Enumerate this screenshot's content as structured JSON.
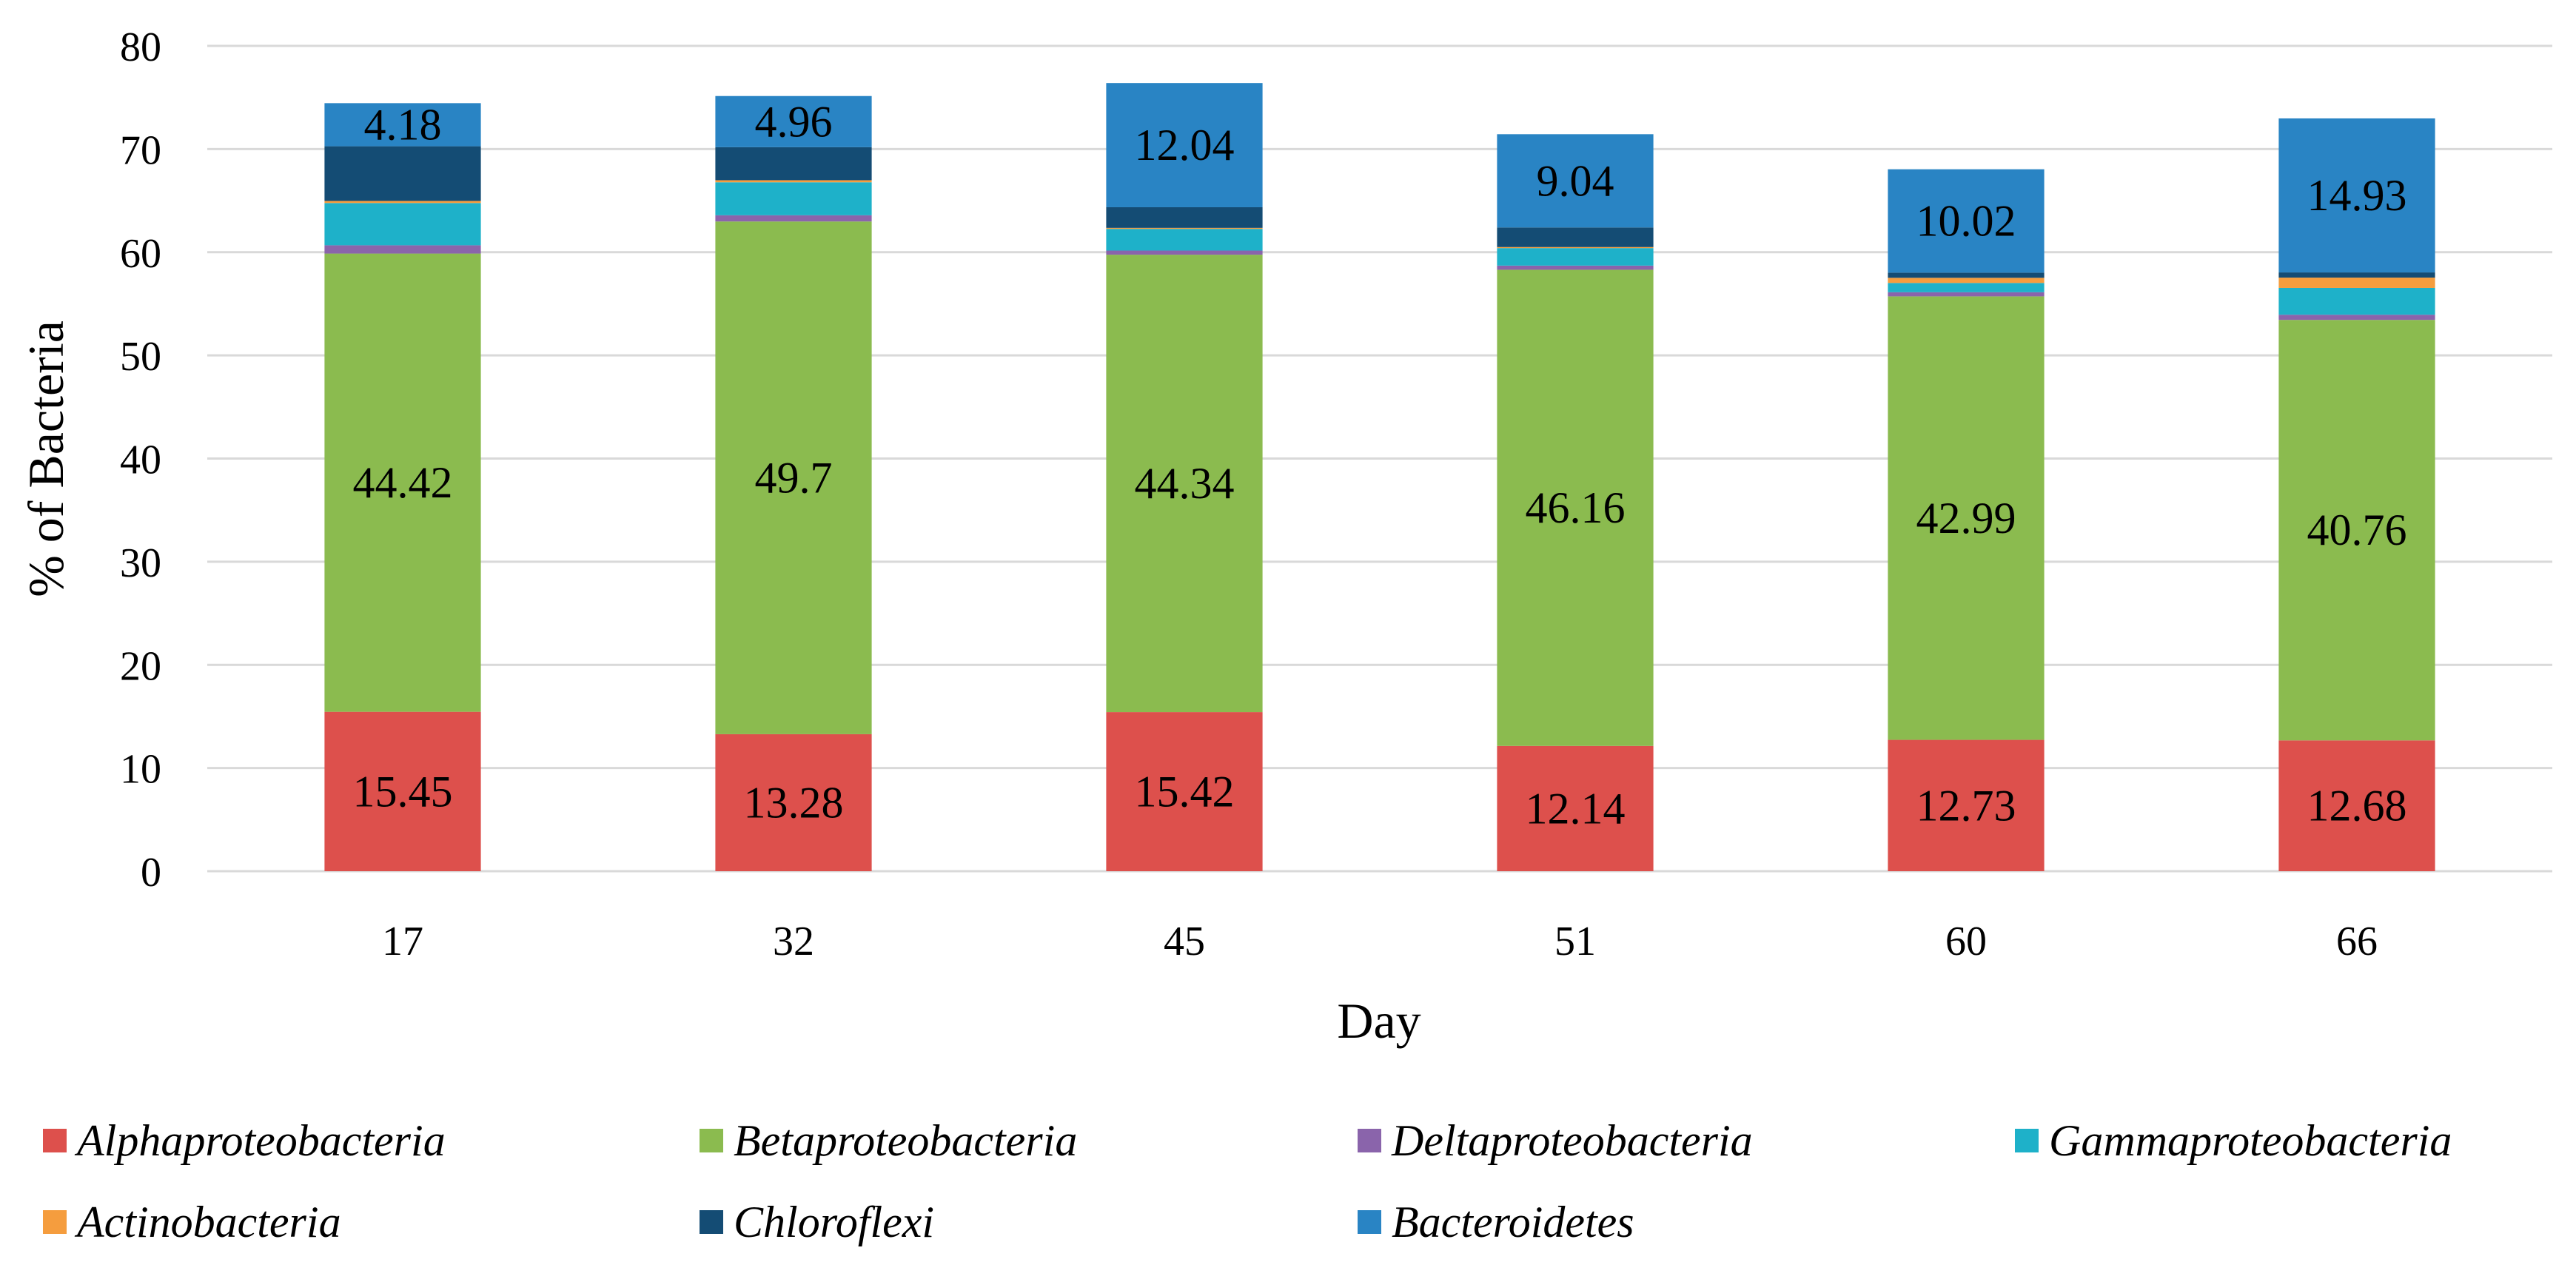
{
  "chart_data": {
    "type": "bar",
    "stacked": true,
    "title": "",
    "xlabel": "Day",
    "ylabel": "% of Bacteria",
    "ylim": [
      0,
      80
    ],
    "yticks": [
      0,
      10,
      20,
      30,
      40,
      50,
      60,
      70,
      80
    ],
    "grid": true,
    "legend_position": "bottom",
    "categories": [
      "17",
      "32",
      "45",
      "51",
      "60",
      "66"
    ],
    "series": [
      {
        "name": "Alphaproteobacteria",
        "color": "#dd504c",
        "values": [
          15.45,
          13.28,
          15.42,
          12.14,
          12.73,
          12.68
        ],
        "labels": [
          "15.45",
          "13.28",
          "15.42",
          "12.14",
          "12.73",
          "12.68"
        ]
      },
      {
        "name": "Betaproteobacteria",
        "color": "#8bbb4f",
        "values": [
          44.42,
          49.7,
          44.34,
          46.16,
          42.99,
          40.76
        ],
        "labels": [
          "44.42",
          "49.7",
          "44.34",
          "46.16",
          "42.99",
          "40.76"
        ]
      },
      {
        "name": "Deltaproteobacteria",
        "color": "#8a64ab",
        "values": [
          0.8,
          0.6,
          0.4,
          0.4,
          0.4,
          0.5
        ],
        "labels": [
          "",
          "",
          "",
          "",
          "",
          ""
        ]
      },
      {
        "name": "Gammaproteobacteria",
        "color": "#1eb1c9",
        "values": [
          4.1,
          3.2,
          2.1,
          1.7,
          0.9,
          2.6
        ],
        "labels": [
          "",
          "",
          "",
          "",
          "",
          ""
        ]
      },
      {
        "name": "Actinobacteria",
        "color": "#f59d3e",
        "values": [
          0.2,
          0.2,
          0.1,
          0.1,
          0.5,
          1.0
        ],
        "labels": [
          "",
          "",
          "",
          "",
          "",
          ""
        ]
      },
      {
        "name": "Chloroflexi",
        "color": "#144c74",
        "values": [
          5.3,
          3.2,
          2.0,
          1.9,
          0.5,
          0.5
        ],
        "labels": [
          "",
          "",
          "",
          "",
          "",
          ""
        ]
      },
      {
        "name": "Bacteroidetes",
        "color": "#2984c4",
        "values": [
          4.18,
          4.96,
          12.04,
          9.04,
          10.02,
          14.93
        ],
        "labels": [
          "4.18",
          "4.96",
          "12.04",
          "9.04",
          "10.02",
          "14.93"
        ]
      }
    ]
  }
}
